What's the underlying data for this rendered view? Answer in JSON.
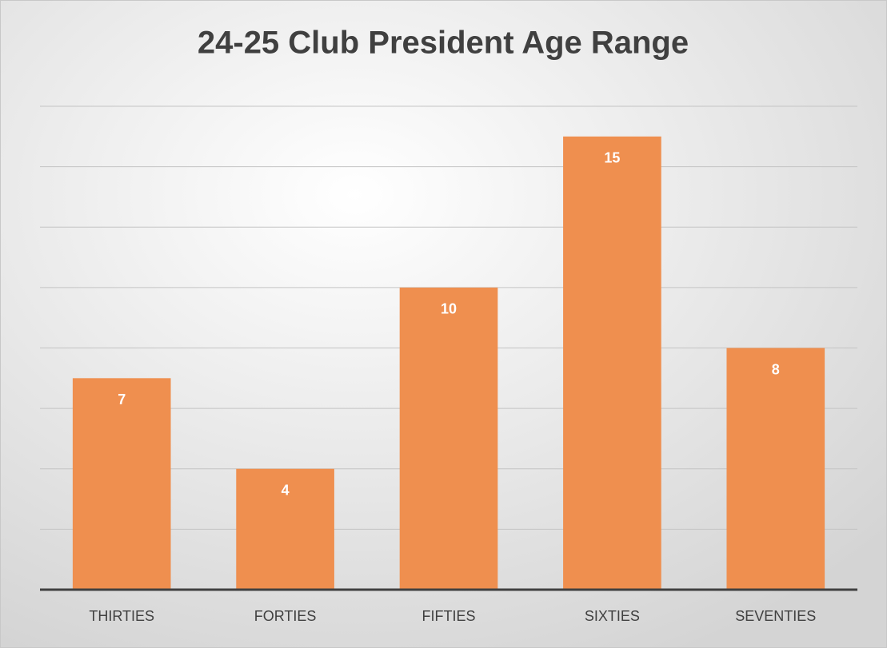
{
  "chart_data": {
    "type": "bar",
    "title": "24-25 Club President Age Range",
    "categories": [
      "THIRTIES",
      "FORTIES",
      "FIFTIES",
      "SIXTIES",
      "SEVENTIES"
    ],
    "values": [
      7,
      4,
      10,
      15,
      8
    ],
    "color": "#ef8f4f",
    "ylim": [
      0,
      16
    ],
    "yticks": [
      0,
      2,
      4,
      6,
      8,
      10,
      12,
      14,
      16
    ],
    "grid": true
  }
}
